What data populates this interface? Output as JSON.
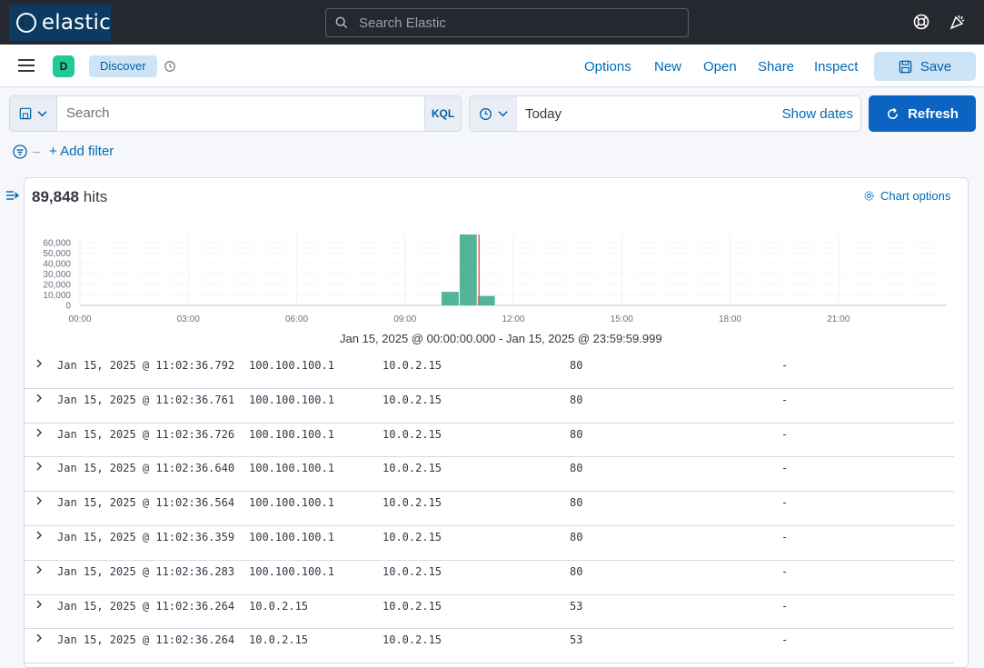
{
  "header": {
    "logo_text": "elastic",
    "search_placeholder": "Search Elastic"
  },
  "appbar": {
    "avatar_letter": "D",
    "breadcrumb": "Discover",
    "links": [
      "Options",
      "New",
      "Open",
      "Share",
      "Inspect"
    ],
    "save_label": "Save"
  },
  "query": {
    "placeholder": "Search",
    "language": "KQL",
    "date_value": "Today",
    "show_dates": "Show dates",
    "refresh_label": "Refresh",
    "add_filter": "+ Add filter"
  },
  "results": {
    "hits_count": "89,848",
    "hits_label": "hits",
    "chart_options": "Chart options",
    "range_label": "Jan 15, 2025 @ 00:00:00.000 - Jan 15, 2025 @ 23:59:59.999"
  },
  "chart_data": {
    "type": "bar",
    "x_ticks": [
      "00:00",
      "03:00",
      "06:00",
      "09:00",
      "12:00",
      "15:00",
      "18:00",
      "21:00"
    ],
    "y_ticks": [
      "60,000",
      "50,000",
      "40,000",
      "30,000",
      "20,000",
      "10,000",
      "0"
    ],
    "ylim": [
      0,
      68000
    ],
    "bars": [
      {
        "start_hour": 10.0,
        "end_hour": 10.5,
        "value": 13000
      },
      {
        "start_hour": 10.5,
        "end_hour": 11.0,
        "value": 68000
      },
      {
        "start_hour": 11.0,
        "end_hour": 11.5,
        "value": 9000
      }
    ],
    "now_marker_hour": 11.05,
    "colors": {
      "bar": "#54b399",
      "now": "#e7664c"
    }
  },
  "rows": [
    [
      "Jan 15, 2025 @ 11:02:36.792",
      "100.100.100.1",
      "10.0.2.15",
      "80",
      "-"
    ],
    [
      "Jan 15, 2025 @ 11:02:36.761",
      "100.100.100.1",
      "10.0.2.15",
      "80",
      "-"
    ],
    [
      "Jan 15, 2025 @ 11:02:36.726",
      "100.100.100.1",
      "10.0.2.15",
      "80",
      "-"
    ],
    [
      "Jan 15, 2025 @ 11:02:36.640",
      "100.100.100.1",
      "10.0.2.15",
      "80",
      "-"
    ],
    [
      "Jan 15, 2025 @ 11:02:36.564",
      "100.100.100.1",
      "10.0.2.15",
      "80",
      "-"
    ],
    [
      "Jan 15, 2025 @ 11:02:36.359",
      "100.100.100.1",
      "10.0.2.15",
      "80",
      "-"
    ],
    [
      "Jan 15, 2025 @ 11:02:36.283",
      "100.100.100.1",
      "10.0.2.15",
      "80",
      "-"
    ],
    [
      "Jan 15, 2025 @ 11:02:36.264",
      "10.0.2.15",
      "10.0.2.15",
      "53",
      "-"
    ],
    [
      "Jan 15, 2025 @ 11:02:36.264",
      "10.0.2.15",
      "10.0.2.15",
      "53",
      "-"
    ]
  ]
}
